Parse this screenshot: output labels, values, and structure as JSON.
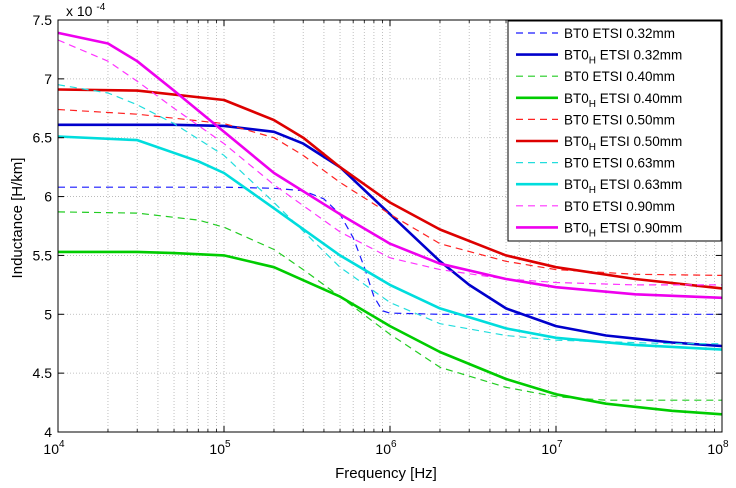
{
  "chart_data": {
    "type": "line",
    "x_scale": "log",
    "xlim": [
      10000,
      100000000
    ],
    "ylim": [
      4.0,
      7.5
    ],
    "y_multiplier": "x 10",
    "y_exponent": "-4",
    "xlabel": "Frequency [Hz]",
    "ylabel": "Inductance [H/km]",
    "x_ticks": [
      {
        "value": 10000,
        "base": "10",
        "exp": "4"
      },
      {
        "value": 100000,
        "base": "10",
        "exp": "5"
      },
      {
        "value": 1000000,
        "base": "10",
        "exp": "6"
      },
      {
        "value": 10000000,
        "base": "10",
        "exp": "7"
      },
      {
        "value": 100000000,
        "base": "10",
        "exp": "8"
      }
    ],
    "y_ticks": [
      {
        "value": 4.0,
        "label": "4"
      },
      {
        "value": 4.5,
        "label": "4.5"
      },
      {
        "value": 5.0,
        "label": "5"
      },
      {
        "value": 5.5,
        "label": "5.5"
      },
      {
        "value": 6.0,
        "label": "6"
      },
      {
        "value": 6.5,
        "label": "6.5"
      },
      {
        "value": 7.0,
        "label": "7"
      },
      {
        "value": 7.5,
        "label": "7.5"
      }
    ],
    "grid": true,
    "legend_position": "top-right",
    "series": [
      {
        "label_main": "BT0 ETSI 0.32mm",
        "label_sub": "",
        "label_rest": "",
        "color": "#1a1aff",
        "dash": true,
        "points": [
          [
            10000,
            6.08
          ],
          [
            100000,
            6.08
          ],
          [
            200000,
            6.07
          ],
          [
            300000,
            6.05
          ],
          [
            400000,
            5.98
          ],
          [
            500000,
            5.85
          ],
          [
            600000,
            5.65
          ],
          [
            700000,
            5.4
          ],
          [
            800000,
            5.15
          ],
          [
            900000,
            5.03
          ],
          [
            1000000,
            5.01
          ],
          [
            2000000,
            5.0
          ],
          [
            10000000,
            5.0
          ],
          [
            100000000,
            5.0
          ]
        ]
      },
      {
        "label_main": "BT0",
        "label_sub": "H",
        "label_rest": " ETSI 0.32mm",
        "color": "#0000cc",
        "dash": false,
        "points": [
          [
            10000,
            6.61
          ],
          [
            50000,
            6.61
          ],
          [
            100000,
            6.6
          ],
          [
            200000,
            6.55
          ],
          [
            300000,
            6.45
          ],
          [
            500000,
            6.25
          ],
          [
            1000000,
            5.85
          ],
          [
            2000000,
            5.45
          ],
          [
            3000000,
            5.25
          ],
          [
            5000000,
            5.05
          ],
          [
            10000000,
            4.9
          ],
          [
            20000000,
            4.82
          ],
          [
            50000000,
            4.76
          ],
          [
            100000000,
            4.73
          ]
        ]
      },
      {
        "label_main": "BT0 ETSI 0.40mm",
        "label_sub": "",
        "label_rest": "",
        "color": "#22cc22",
        "dash": true,
        "points": [
          [
            10000,
            5.87
          ],
          [
            30000,
            5.86
          ],
          [
            70000,
            5.8
          ],
          [
            100000,
            5.74
          ],
          [
            200000,
            5.55
          ],
          [
            300000,
            5.38
          ],
          [
            500000,
            5.15
          ],
          [
            1000000,
            4.83
          ],
          [
            2000000,
            4.55
          ],
          [
            5000000,
            4.38
          ],
          [
            10000000,
            4.3
          ],
          [
            20000000,
            4.27
          ],
          [
            50000000,
            4.27
          ],
          [
            100000000,
            4.27
          ]
        ]
      },
      {
        "label_main": "BT0",
        "label_sub": "H",
        "label_rest": " ETSI 0.40mm",
        "color": "#00cc00",
        "dash": false,
        "points": [
          [
            10000,
            5.53
          ],
          [
            30000,
            5.53
          ],
          [
            50000,
            5.52
          ],
          [
            100000,
            5.5
          ],
          [
            200000,
            5.4
          ],
          [
            500000,
            5.15
          ],
          [
            1000000,
            4.9
          ],
          [
            2000000,
            4.68
          ],
          [
            5000000,
            4.45
          ],
          [
            10000000,
            4.32
          ],
          [
            20000000,
            4.24
          ],
          [
            50000000,
            4.18
          ],
          [
            100000000,
            4.15
          ]
        ]
      },
      {
        "label_main": "BT0 ETSI 0.50mm",
        "label_sub": "",
        "label_rest": "",
        "color": "#ff2222",
        "dash": true,
        "points": [
          [
            10000,
            6.74
          ],
          [
            30000,
            6.7
          ],
          [
            100000,
            6.62
          ],
          [
            200000,
            6.5
          ],
          [
            300000,
            6.35
          ],
          [
            500000,
            6.12
          ],
          [
            1000000,
            5.85
          ],
          [
            2000000,
            5.6
          ],
          [
            5000000,
            5.45
          ],
          [
            10000000,
            5.38
          ],
          [
            30000000,
            5.34
          ],
          [
            100000000,
            5.33
          ]
        ]
      },
      {
        "label_main": "BT0",
        "label_sub": "H",
        "label_rest": " ETSI 0.50mm",
        "color": "#dd0000",
        "dash": false,
        "points": [
          [
            10000,
            6.91
          ],
          [
            30000,
            6.9
          ],
          [
            100000,
            6.82
          ],
          [
            200000,
            6.65
          ],
          [
            300000,
            6.5
          ],
          [
            500000,
            6.25
          ],
          [
            1000000,
            5.95
          ],
          [
            2000000,
            5.72
          ],
          [
            5000000,
            5.5
          ],
          [
            10000000,
            5.4
          ],
          [
            30000000,
            5.3
          ],
          [
            100000000,
            5.22
          ]
        ]
      },
      {
        "label_main": "BT0 ETSI 0.63mm",
        "label_sub": "",
        "label_rest": "",
        "color": "#22dddd",
        "dash": true,
        "points": [
          [
            10000,
            6.95
          ],
          [
            20000,
            6.88
          ],
          [
            30000,
            6.78
          ],
          [
            50000,
            6.62
          ],
          [
            100000,
            6.35
          ],
          [
            200000,
            5.95
          ],
          [
            500000,
            5.4
          ],
          [
            1000000,
            5.1
          ],
          [
            2000000,
            4.92
          ],
          [
            5000000,
            4.82
          ],
          [
            10000000,
            4.78
          ],
          [
            50000000,
            4.75
          ],
          [
            100000000,
            4.75
          ]
        ]
      },
      {
        "label_main": "BT0",
        "label_sub": "H",
        "label_rest": " ETSI 0.63mm",
        "color": "#00dddd",
        "dash": false,
        "points": [
          [
            10000,
            6.51
          ],
          [
            30000,
            6.48
          ],
          [
            70000,
            6.3
          ],
          [
            100000,
            6.2
          ],
          [
            200000,
            5.9
          ],
          [
            500000,
            5.5
          ],
          [
            1000000,
            5.25
          ],
          [
            2000000,
            5.05
          ],
          [
            5000000,
            4.88
          ],
          [
            10000000,
            4.8
          ],
          [
            30000000,
            4.74
          ],
          [
            100000000,
            4.7
          ]
        ]
      },
      {
        "label_main": "BT0 ETSI 0.90mm",
        "label_sub": "",
        "label_rest": "",
        "color": "#ff33ff",
        "dash": true,
        "points": [
          [
            10000,
            7.33
          ],
          [
            20000,
            7.15
          ],
          [
            30000,
            6.98
          ],
          [
            50000,
            6.75
          ],
          [
            100000,
            6.45
          ],
          [
            200000,
            6.1
          ],
          [
            500000,
            5.7
          ],
          [
            1000000,
            5.48
          ],
          [
            2000000,
            5.38
          ],
          [
            5000000,
            5.3
          ],
          [
            10000000,
            5.27
          ],
          [
            30000000,
            5.25
          ],
          [
            100000000,
            5.25
          ]
        ]
      },
      {
        "label_main": "BT0",
        "label_sub": "H",
        "label_rest": " ETSI 0.90mm",
        "color": "#ee00ee",
        "dash": false,
        "points": [
          [
            10000,
            7.39
          ],
          [
            20000,
            7.3
          ],
          [
            30000,
            7.15
          ],
          [
            50000,
            6.9
          ],
          [
            100000,
            6.55
          ],
          [
            200000,
            6.2
          ],
          [
            500000,
            5.85
          ],
          [
            1000000,
            5.6
          ],
          [
            2000000,
            5.43
          ],
          [
            5000000,
            5.3
          ],
          [
            10000000,
            5.23
          ],
          [
            30000000,
            5.17
          ],
          [
            100000000,
            5.14
          ]
        ]
      }
    ]
  }
}
